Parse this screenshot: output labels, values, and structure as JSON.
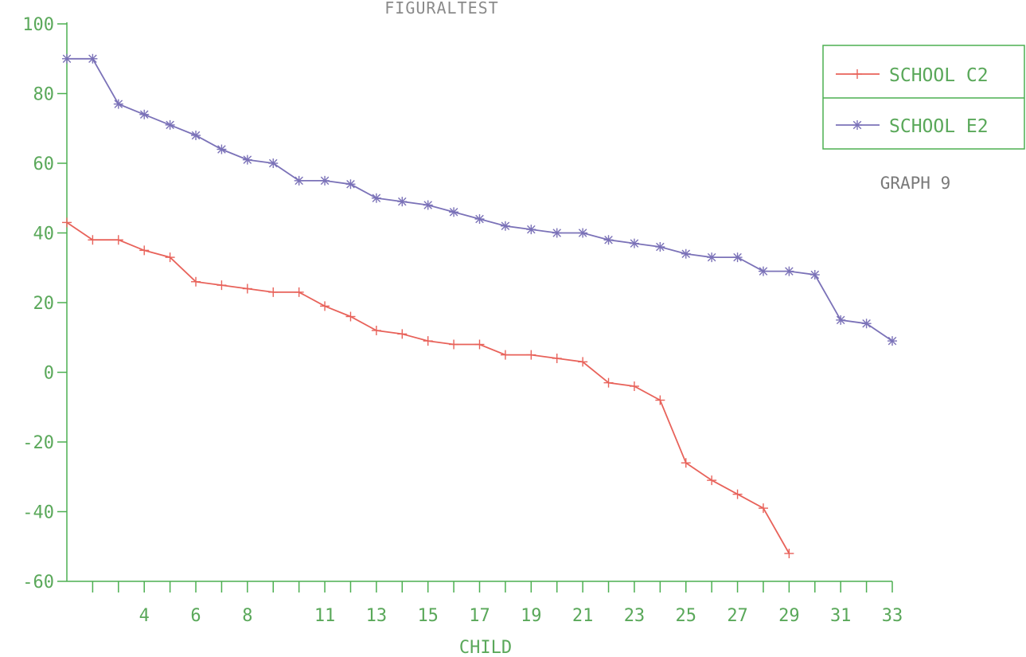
{
  "chart_data": {
    "type": "line",
    "title": "FIGURALTEST",
    "xlabel": "CHILD",
    "ylabel": "",
    "xlim": [
      1,
      33
    ],
    "ylim": [
      -60,
      100
    ],
    "x_ticks": [
      4,
      6,
      8,
      11,
      13,
      15,
      17,
      19,
      21,
      23,
      25,
      27,
      29,
      31,
      33
    ],
    "y_ticks": [
      100,
      80,
      60,
      40,
      20,
      0,
      -20,
      -40,
      -60
    ],
    "grid": false,
    "legend_position": "top-right",
    "annotation": "GRAPH 9",
    "series": [
      {
        "name": "SCHOOL C2",
        "color": "#e8625a",
        "marker": "plus",
        "x": [
          1,
          2,
          3,
          4,
          5,
          6,
          7,
          8,
          9,
          10,
          11,
          12,
          13,
          14,
          15,
          16,
          17,
          18,
          19,
          20,
          21,
          22,
          23,
          24,
          25,
          26,
          27,
          28,
          29
        ],
        "values": [
          43,
          38,
          38,
          35,
          33,
          26,
          25,
          24,
          23,
          23,
          19,
          16,
          12,
          11,
          9,
          8,
          8,
          5,
          5,
          4,
          3,
          -3,
          -4,
          -8,
          -26,
          -31,
          -35,
          -39,
          -52
        ]
      },
      {
        "name": "SCHOOL E2",
        "color": "#7b72b8",
        "marker": "asterisk",
        "x": [
          1,
          2,
          3,
          4,
          5,
          6,
          7,
          8,
          9,
          10,
          11,
          12,
          13,
          14,
          15,
          16,
          17,
          18,
          19,
          20,
          21,
          22,
          23,
          24,
          25,
          26,
          27,
          28,
          29,
          30,
          31,
          32,
          33
        ],
        "values": [
          90,
          90,
          77,
          74,
          71,
          68,
          64,
          61,
          60,
          55,
          55,
          54,
          50,
          49,
          48,
          46,
          44,
          42,
          41,
          40,
          40,
          38,
          37,
          36,
          34,
          33,
          33,
          29,
          29,
          28,
          15,
          14,
          9
        ]
      }
    ]
  }
}
